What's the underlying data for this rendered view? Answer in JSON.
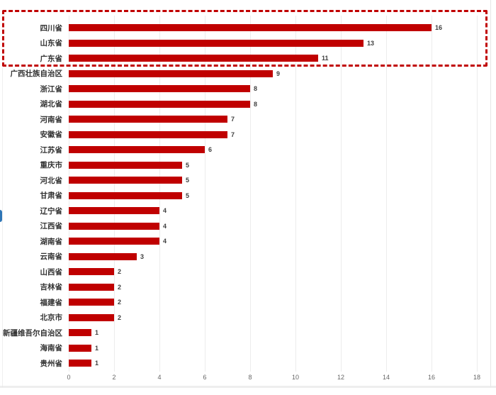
{
  "chart_data": {
    "type": "bar",
    "orientation": "horizontal",
    "title": "",
    "xlabel": "",
    "ylabel": "",
    "categories": [
      "四川省",
      "山东省",
      "广东省",
      "广西壮族自治区",
      "浙江省",
      "湖北省",
      "河南省",
      "安徽省",
      "江苏省",
      "重庆市",
      "河北省",
      "甘肃省",
      "辽宁省",
      "江西省",
      "湖南省",
      "云南省",
      "山西省",
      "吉林省",
      "福建省",
      "北京市",
      "新疆维吾尔自治区",
      "海南省",
      "贵州省"
    ],
    "values": [
      16,
      13,
      11,
      9,
      8,
      8,
      7,
      7,
      6,
      5,
      5,
      5,
      4,
      4,
      4,
      3,
      2,
      2,
      2,
      2,
      1,
      1,
      1
    ],
    "data_labels_shown": true,
    "xlim": [
      0,
      18
    ],
    "x_ticks": [
      0,
      2,
      4,
      6,
      8,
      10,
      12,
      14,
      16,
      18
    ],
    "grid": true,
    "legend": "none",
    "bar_color": "#c00000",
    "grid_color": "#ececec",
    "category_label_color": "#333333",
    "value_label_color": "#404040",
    "tick_label_color": "#666666",
    "highlight": {
      "shape": "dashed-rectangle",
      "color": "#c00000",
      "enclosed_categories": [
        "四川省",
        "山东省",
        "广东省"
      ]
    }
  }
}
